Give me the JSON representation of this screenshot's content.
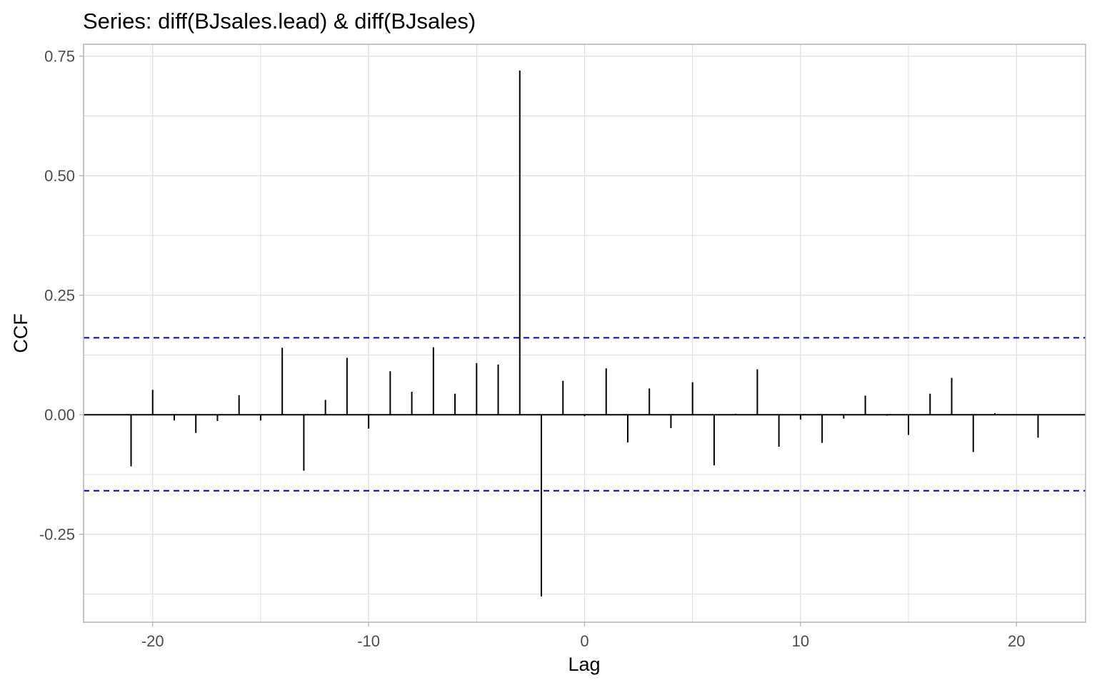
{
  "chart_data": {
    "type": "bar",
    "subtype": "cross-correlation lollipop (vertical segments)",
    "title": "Series: diff(BJsales.lead) & diff(BJsales)",
    "xlabel": "Lag",
    "ylabel": "CCF",
    "xlim": [
      -23.2,
      23.2
    ],
    "ylim": [
      -0.434,
      0.775
    ],
    "xticks": [
      -20,
      -10,
      0,
      10,
      20
    ],
    "xtick_labels": [
      "-20",
      "-10",
      "0",
      "10",
      "20"
    ],
    "yticks": [
      -0.25,
      0,
      0.25,
      0.5,
      0.75
    ],
    "ytick_labels": [
      "-0.25",
      "0.00",
      "0.25",
      "0.50",
      "0.75"
    ],
    "grid": true,
    "legend": "none",
    "lags": [
      -21,
      -20,
      -19,
      -18,
      -17,
      -16,
      -15,
      -14,
      -13,
      -12,
      -11,
      -10,
      -9,
      -8,
      -7,
      -6,
      -5,
      -4,
      -3,
      -2,
      -1,
      0,
      1,
      2,
      3,
      4,
      5,
      6,
      7,
      8,
      9,
      10,
      11,
      12,
      13,
      14,
      15,
      16,
      17,
      18,
      19,
      20,
      21
    ],
    "values": [
      -0.108,
      0.052,
      -0.012,
      -0.038,
      -0.013,
      0.041,
      -0.012,
      0.14,
      -0.117,
      0.031,
      0.119,
      -0.029,
      0.091,
      0.048,
      0.141,
      0.044,
      0.108,
      0.105,
      0.72,
      -0.38,
      0.071,
      -0.003,
      0.097,
      -0.058,
      0.055,
      -0.028,
      0.068,
      -0.106,
      0.002,
      0.095,
      -0.067,
      -0.01,
      -0.059,
      -0.008,
      0.04,
      -0.002,
      -0.042,
      0.044,
      0.077,
      -0.078,
      0.003,
      0.001,
      -0.048
    ],
    "confidence_bounds": [
      0.161,
      -0.159
    ],
    "colors": {
      "bars": "#000000",
      "confidence": "#0000cd",
      "grid": "#dedede",
      "panel_border": "#b3b3b3",
      "zero_line": "#000000"
    }
  }
}
